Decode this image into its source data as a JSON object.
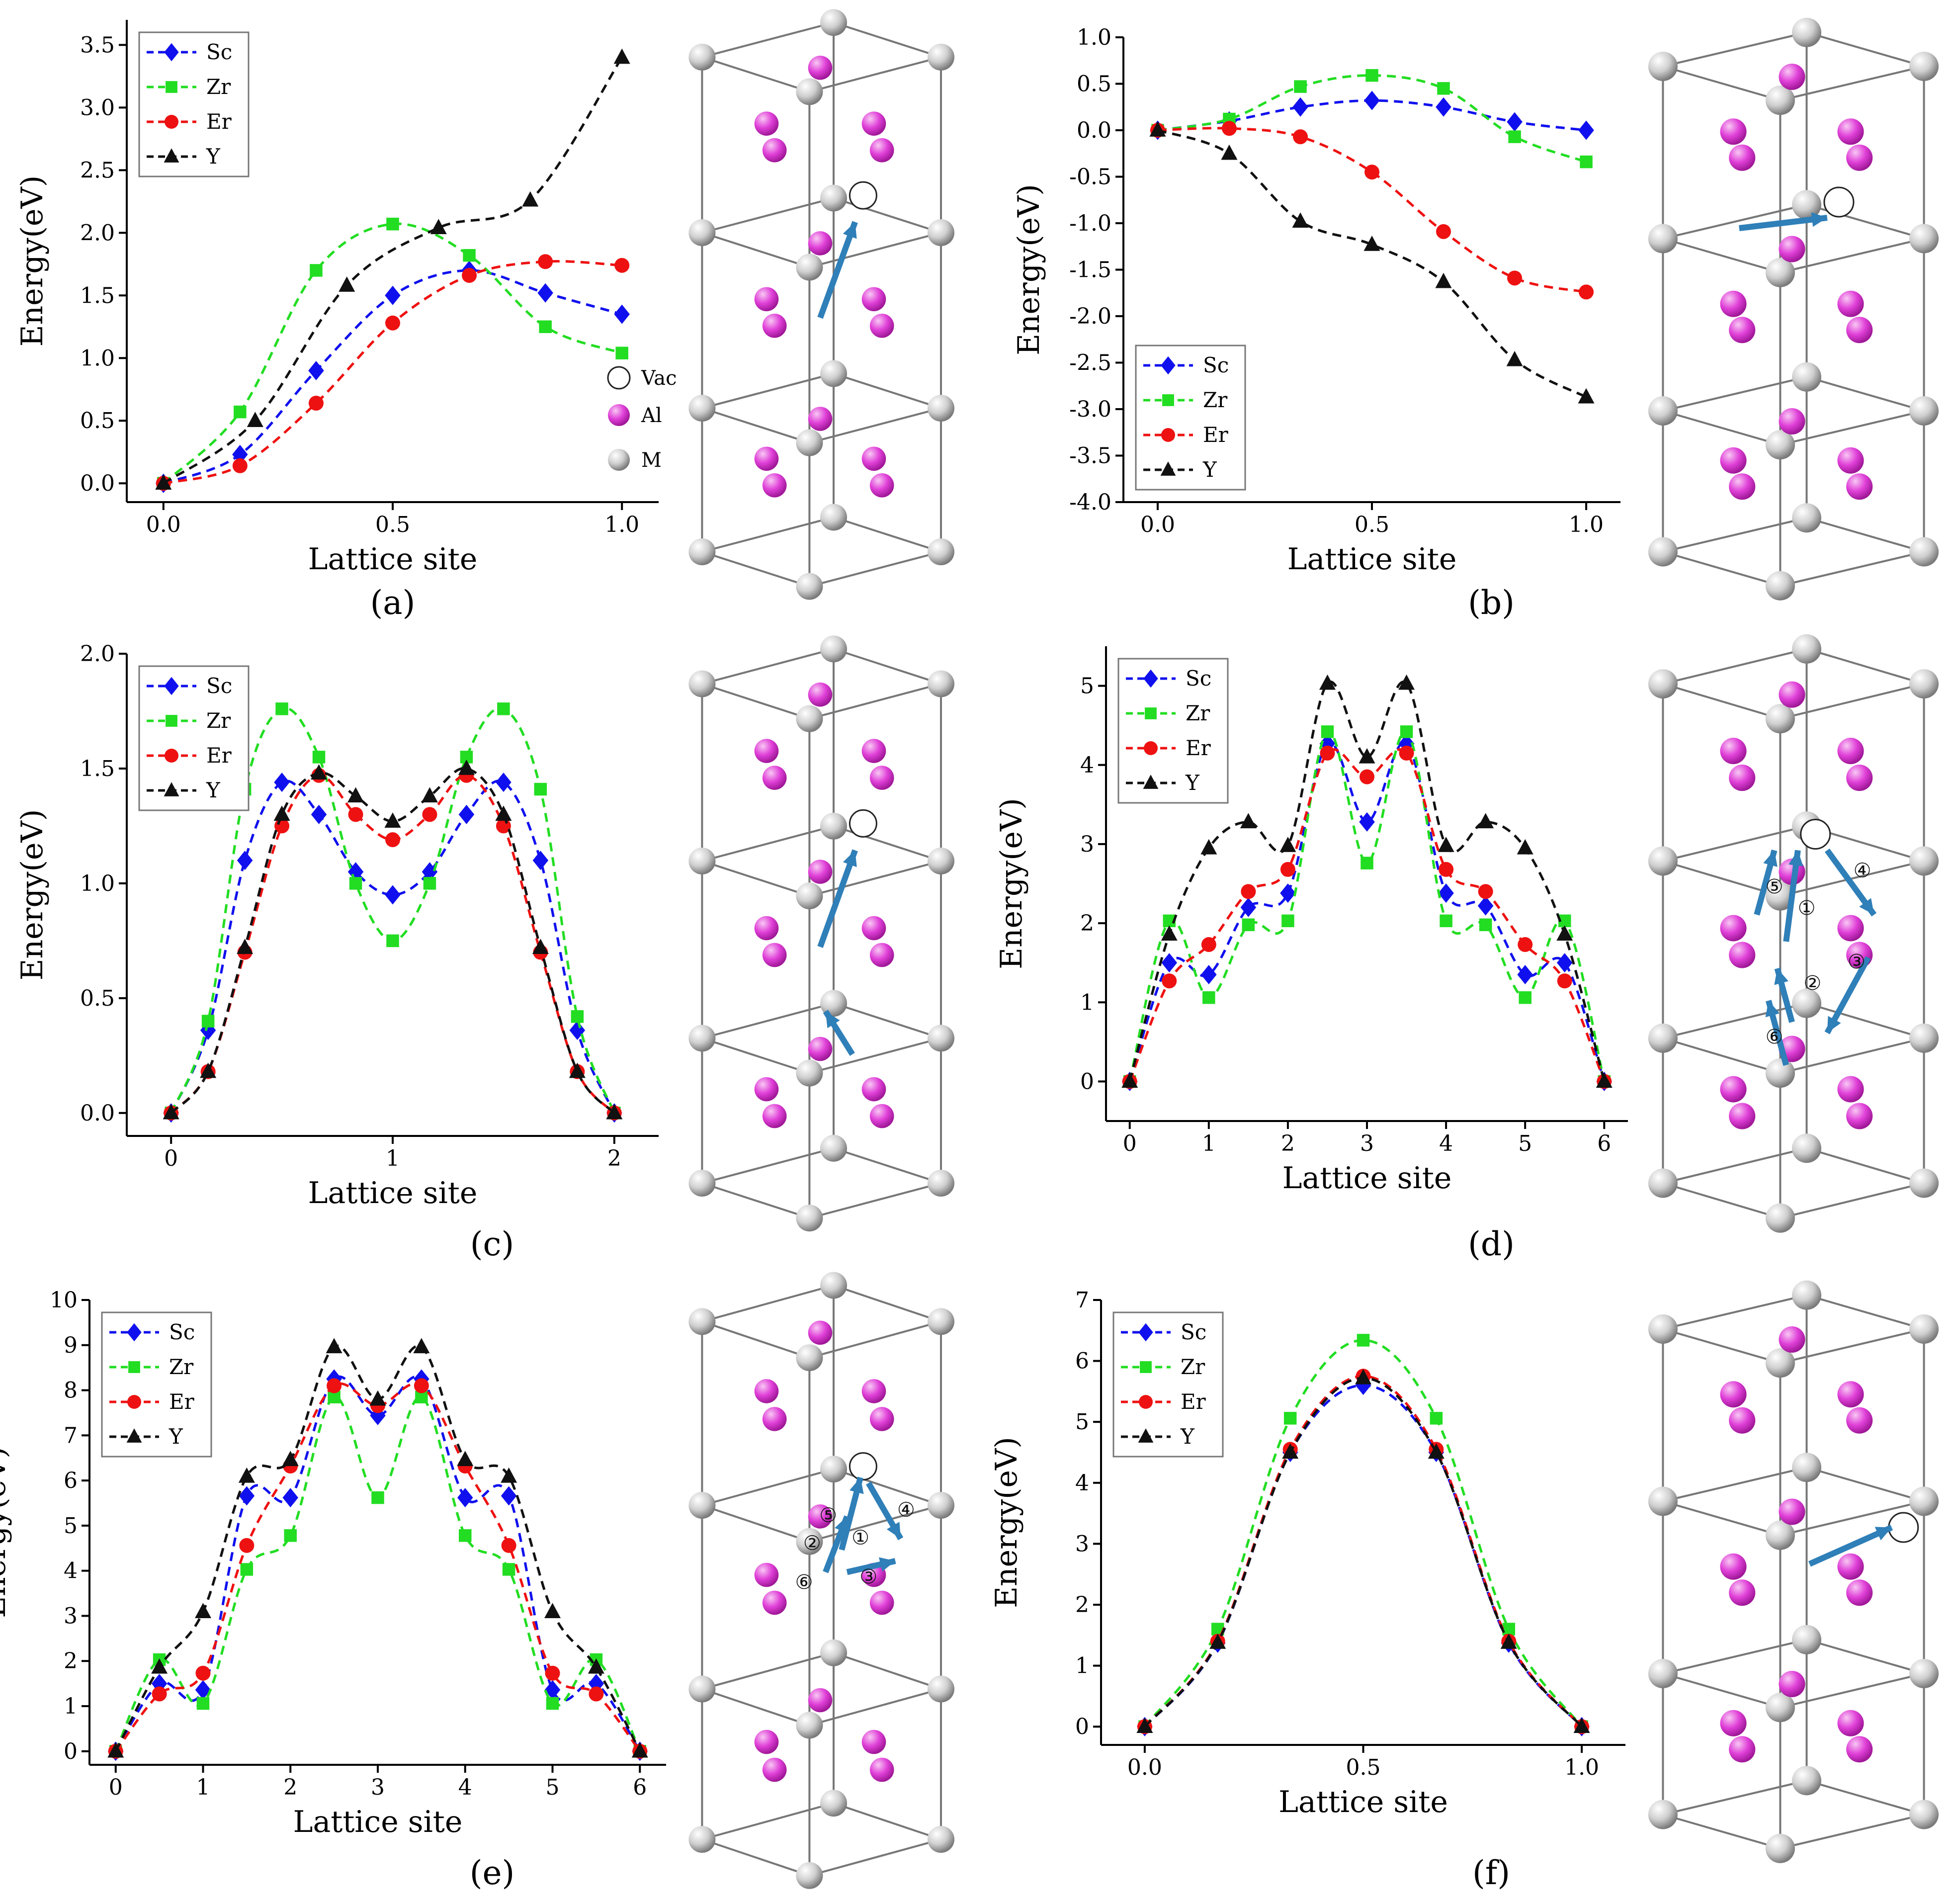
{
  "figure": {
    "series_colors": {
      "Sc": "#1010ee",
      "Zr": "#22dd22",
      "Er": "#ee1111",
      "Y": "#111111"
    },
    "legend_names": [
      "Sc",
      "Zr",
      "Er",
      "Y"
    ],
    "structure_legend": {
      "vac": "Vac",
      "al": "Al",
      "m": "M"
    },
    "atom_colors": {
      "al": "#e040d8",
      "m": "#cfcfcf",
      "arrow": "#2f7fb8"
    },
    "step_labels": [
      "①",
      "②",
      "③",
      "④",
      "⑤",
      "⑥"
    ]
  },
  "chart_data": [
    {
      "panel": "a",
      "caption": "(a)",
      "type": "line",
      "xlabel": "Lattice site",
      "ylabel": "Energy(eV)",
      "xlim": [
        -0.08,
        1.08
      ],
      "ylim": [
        -0.15,
        3.7
      ],
      "xticks": [
        0.0,
        0.5,
        1.0
      ],
      "xtick_labels": [
        "0.0",
        "0.5",
        "1.0"
      ],
      "yticks": [
        0.0,
        0.5,
        1.0,
        1.5,
        2.0,
        2.5,
        3.0,
        3.5
      ],
      "ytick_labels": [
        "0.0",
        "0.5",
        "1.0",
        "1.5",
        "2.0",
        "2.5",
        "3.0",
        "3.5"
      ],
      "legend": "top-left",
      "series": [
        {
          "name": "Sc",
          "x": [
            0,
            0.167,
            0.333,
            0.5,
            0.667,
            0.833,
            1.0
          ],
          "values": [
            0,
            0.23,
            0.9,
            1.5,
            1.7,
            1.52,
            1.35
          ]
        },
        {
          "name": "Zr",
          "x": [
            0,
            0.167,
            0.333,
            0.5,
            0.667,
            0.833,
            1.0
          ],
          "values": [
            0,
            0.57,
            1.7,
            2.07,
            1.82,
            1.25,
            1.04
          ]
        },
        {
          "name": "Er",
          "x": [
            0,
            0.167,
            0.333,
            0.5,
            0.667,
            0.833,
            1.0
          ],
          "values": [
            0,
            0.14,
            0.64,
            1.28,
            1.66,
            1.77,
            1.74
          ]
        },
        {
          "name": "Y",
          "x": [
            0,
            0.2,
            0.4,
            0.6,
            0.8,
            1.0
          ],
          "values": [
            0,
            0.5,
            1.58,
            2.04,
            2.26,
            3.4
          ]
        }
      ]
    },
    {
      "panel": "b",
      "caption": "(b)",
      "type": "line",
      "xlabel": "Lattice site",
      "ylabel": "Energy(eV)",
      "xlim": [
        -0.08,
        1.08
      ],
      "ylim": [
        -4.0,
        1.0
      ],
      "xticks": [
        0.0,
        0.5,
        1.0
      ],
      "xtick_labels": [
        "0.0",
        "0.5",
        "1.0"
      ],
      "yticks": [
        1.0,
        0.5,
        0.0,
        -0.5,
        -1.0,
        -1.5,
        -2.0,
        -2.5,
        -3.0,
        -3.5,
        -4.0
      ],
      "ytick_labels": [
        "1.0",
        "0.5",
        "0.0",
        "-0.5",
        "-1.0",
        "-1.5",
        "-2.0",
        "-2.5",
        "-3.0",
        "-3.5",
        "-4.0"
      ],
      "legend": "bottom-left",
      "series": [
        {
          "name": "Sc",
          "x": [
            0,
            0.167,
            0.333,
            0.5,
            0.667,
            0.833,
            1.0
          ],
          "values": [
            0,
            0.1,
            0.25,
            0.32,
            0.25,
            0.09,
            0.0
          ]
        },
        {
          "name": "Zr",
          "x": [
            0,
            0.167,
            0.333,
            0.5,
            0.667,
            0.833,
            1.0
          ],
          "values": [
            0,
            0.12,
            0.47,
            0.59,
            0.45,
            -0.07,
            -0.34
          ]
        },
        {
          "name": "Er",
          "x": [
            0,
            0.167,
            0.333,
            0.5,
            0.667,
            0.833,
            1.0
          ],
          "values": [
            0,
            0.02,
            -0.07,
            -0.45,
            -1.09,
            -1.59,
            -1.74
          ]
        },
        {
          "name": "Y",
          "x": [
            0,
            0.167,
            0.333,
            0.5,
            0.667,
            0.833,
            1.0
          ],
          "values": [
            0,
            -0.25,
            -0.98,
            -1.23,
            -1.63,
            -2.47,
            -2.87
          ]
        }
      ]
    },
    {
      "panel": "c",
      "caption": "(c)",
      "type": "line",
      "xlabel": "Lattice site",
      "ylabel": "Energy(eV)",
      "xlim": [
        -0.2,
        2.2
      ],
      "ylim": [
        -0.1,
        2.0
      ],
      "xticks": [
        0,
        1,
        2
      ],
      "xtick_labels": [
        "0",
        "1",
        "2"
      ],
      "yticks": [
        0.0,
        0.5,
        1.0,
        1.5,
        2.0
      ],
      "ytick_labels": [
        "0.0",
        "0.5",
        "1.0",
        "1.5",
        "2.0"
      ],
      "legend": "top-left",
      "series": [
        {
          "name": "Sc",
          "x": [
            0,
            0.167,
            0.333,
            0.5,
            0.667,
            0.833,
            1.0,
            1.167,
            1.333,
            1.5,
            1.667,
            1.833,
            2.0
          ],
          "values": [
            0,
            0.36,
            1.1,
            1.44,
            1.3,
            1.05,
            0.95,
            1.05,
            1.3,
            1.44,
            1.1,
            0.36,
            0
          ]
        },
        {
          "name": "Zr",
          "x": [
            0,
            0.167,
            0.333,
            0.5,
            0.667,
            0.833,
            1.0,
            1.167,
            1.333,
            1.5,
            1.667,
            1.833,
            2.0
          ],
          "values": [
            0,
            0.4,
            1.41,
            1.76,
            1.55,
            1.0,
            0.75,
            1.0,
            1.55,
            1.76,
            1.41,
            0.42,
            0
          ]
        },
        {
          "name": "Er",
          "x": [
            0,
            0.167,
            0.333,
            0.5,
            0.667,
            0.833,
            1.0,
            1.167,
            1.333,
            1.5,
            1.667,
            1.833,
            2.0
          ],
          "values": [
            0,
            0.18,
            0.7,
            1.25,
            1.47,
            1.3,
            1.19,
            1.3,
            1.47,
            1.25,
            0.7,
            0.18,
            0
          ]
        },
        {
          "name": "Y",
          "x": [
            0,
            0.167,
            0.333,
            0.5,
            0.667,
            0.833,
            1.0,
            1.167,
            1.333,
            1.5,
            1.667,
            1.833,
            2.0
          ],
          "values": [
            0,
            0.18,
            0.72,
            1.3,
            1.48,
            1.38,
            1.27,
            1.38,
            1.5,
            1.3,
            0.72,
            0.18,
            0
          ]
        }
      ]
    },
    {
      "panel": "d",
      "caption": "(d)",
      "type": "line",
      "xlabel": "Lattice site",
      "ylabel": "Energy(eV)",
      "xlim": [
        -0.3,
        6.3
      ],
      "ylim": [
        -0.5,
        5.5
      ],
      "xticks": [
        0,
        1,
        2,
        3,
        4,
        5,
        6
      ],
      "xtick_labels": [
        "0",
        "1",
        "2",
        "3",
        "4",
        "5",
        "6"
      ],
      "yticks": [
        0,
        1,
        2,
        3,
        4,
        5
      ],
      "ytick_labels": [
        "0",
        "1",
        "2",
        "3",
        "4",
        "5"
      ],
      "legend": "top-left",
      "series": [
        {
          "name": "Sc",
          "x": [
            0,
            0.5,
            1,
            1.5,
            2,
            2.5,
            3,
            3.5,
            4,
            4.5,
            5,
            5.5,
            6
          ],
          "values": [
            0,
            1.5,
            1.35,
            2.2,
            2.38,
            4.27,
            3.28,
            4.27,
            2.38,
            2.22,
            1.35,
            1.5,
            0
          ]
        },
        {
          "name": "Zr",
          "x": [
            0,
            0.5,
            1,
            1.5,
            2,
            2.5,
            3,
            3.5,
            4,
            4.5,
            5,
            5.5,
            6
          ],
          "values": [
            0,
            2.03,
            1.06,
            1.98,
            2.03,
            4.42,
            2.76,
            4.42,
            2.03,
            1.98,
            1.06,
            2.03,
            0
          ]
        },
        {
          "name": "Er",
          "x": [
            0,
            0.5,
            1,
            1.5,
            2,
            2.5,
            3,
            3.5,
            4,
            4.5,
            5,
            5.5,
            6
          ],
          "values": [
            0,
            1.27,
            1.73,
            2.4,
            2.68,
            4.15,
            3.85,
            4.15,
            2.68,
            2.4,
            1.73,
            1.27,
            0
          ]
        },
        {
          "name": "Y",
          "x": [
            0,
            0.5,
            1,
            1.5,
            2,
            2.5,
            3,
            3.5,
            4,
            4.5,
            5,
            5.5,
            6
          ],
          "values": [
            0,
            1.86,
            2.95,
            3.28,
            2.98,
            5.03,
            4.1,
            5.03,
            2.98,
            3.28,
            2.95,
            1.86,
            0
          ]
        }
      ]
    },
    {
      "panel": "e",
      "caption": "(e)",
      "type": "line",
      "xlabel": "Lattice site",
      "ylabel": "Energy(eV)",
      "xlim": [
        -0.3,
        6.3
      ],
      "ylim": [
        -0.3,
        10.0
      ],
      "xticks": [
        0,
        1,
        2,
        3,
        4,
        5,
        6
      ],
      "xtick_labels": [
        "0",
        "1",
        "2",
        "3",
        "4",
        "5",
        "6"
      ],
      "yticks": [
        0,
        1,
        2,
        3,
        4,
        5,
        6,
        7,
        8,
        9,
        10
      ],
      "ytick_labels": [
        "0",
        "1",
        "2",
        "3",
        "4",
        "5",
        "6",
        "7",
        "8",
        "9",
        "10"
      ],
      "legend": "top-left",
      "series": [
        {
          "name": "Sc",
          "x": [
            0,
            0.5,
            1,
            1.5,
            2,
            2.5,
            3,
            3.5,
            4,
            4.5,
            5,
            5.5,
            6
          ],
          "values": [
            0,
            1.5,
            1.36,
            5.66,
            5.62,
            8.25,
            7.44,
            8.25,
            5.62,
            5.66,
            1.36,
            1.5,
            0
          ]
        },
        {
          "name": "Zr",
          "x": [
            0,
            0.5,
            1,
            1.5,
            2,
            2.5,
            3,
            3.5,
            4,
            4.5,
            5,
            5.5,
            6
          ],
          "values": [
            0,
            2.03,
            1.06,
            4.03,
            4.78,
            7.85,
            5.62,
            7.85,
            4.78,
            4.03,
            1.06,
            2.03,
            0
          ]
        },
        {
          "name": "Er",
          "x": [
            0,
            0.5,
            1,
            1.5,
            2,
            2.5,
            3,
            3.5,
            4,
            4.5,
            5,
            5.5,
            6
          ],
          "values": [
            0,
            1.27,
            1.73,
            4.56,
            6.32,
            8.1,
            7.66,
            8.1,
            6.32,
            4.56,
            1.73,
            1.27,
            0
          ]
        },
        {
          "name": "Y",
          "x": [
            0,
            0.5,
            1,
            1.5,
            2,
            2.5,
            3,
            3.5,
            4,
            4.5,
            5,
            5.5,
            6
          ],
          "values": [
            0,
            1.86,
            3.09,
            6.09,
            6.46,
            8.96,
            7.8,
            8.96,
            6.46,
            6.09,
            3.09,
            1.86,
            0
          ]
        }
      ]
    },
    {
      "panel": "f",
      "caption": "(f)",
      "type": "line",
      "xlabel": "Lattice site",
      "ylabel": "Energy(eV)",
      "xlim": [
        -0.1,
        1.1
      ],
      "ylim": [
        -0.3,
        7.0
      ],
      "xticks": [
        0.0,
        0.5,
        1.0
      ],
      "xtick_labels": [
        "0.0",
        "0.5",
        "1.0"
      ],
      "yticks": [
        0,
        1,
        2,
        3,
        4,
        5,
        6,
        7
      ],
      "ytick_labels": [
        "0",
        "1",
        "2",
        "3",
        "4",
        "5",
        "6",
        "7"
      ],
      "legend": "top-left",
      "series": [
        {
          "name": "Sc",
          "x": [
            0,
            0.167,
            0.333,
            0.5,
            0.667,
            0.833,
            1.0
          ],
          "values": [
            0,
            1.37,
            4.5,
            5.6,
            4.5,
            1.37,
            0
          ]
        },
        {
          "name": "Zr",
          "x": [
            0,
            0.167,
            0.333,
            0.5,
            0.667,
            0.833,
            1.0
          ],
          "values": [
            0,
            1.6,
            5.06,
            6.34,
            5.06,
            1.6,
            0
          ]
        },
        {
          "name": "Er",
          "x": [
            0,
            0.167,
            0.333,
            0.5,
            0.667,
            0.833,
            1.0
          ],
          "values": [
            0,
            1.4,
            4.55,
            5.75,
            4.55,
            1.4,
            0
          ]
        },
        {
          "name": "Y",
          "x": [
            0,
            0.167,
            0.333,
            0.5,
            0.667,
            0.833,
            1.0
          ],
          "values": [
            0,
            1.38,
            4.5,
            5.72,
            4.5,
            1.38,
            0
          ]
        }
      ]
    }
  ]
}
